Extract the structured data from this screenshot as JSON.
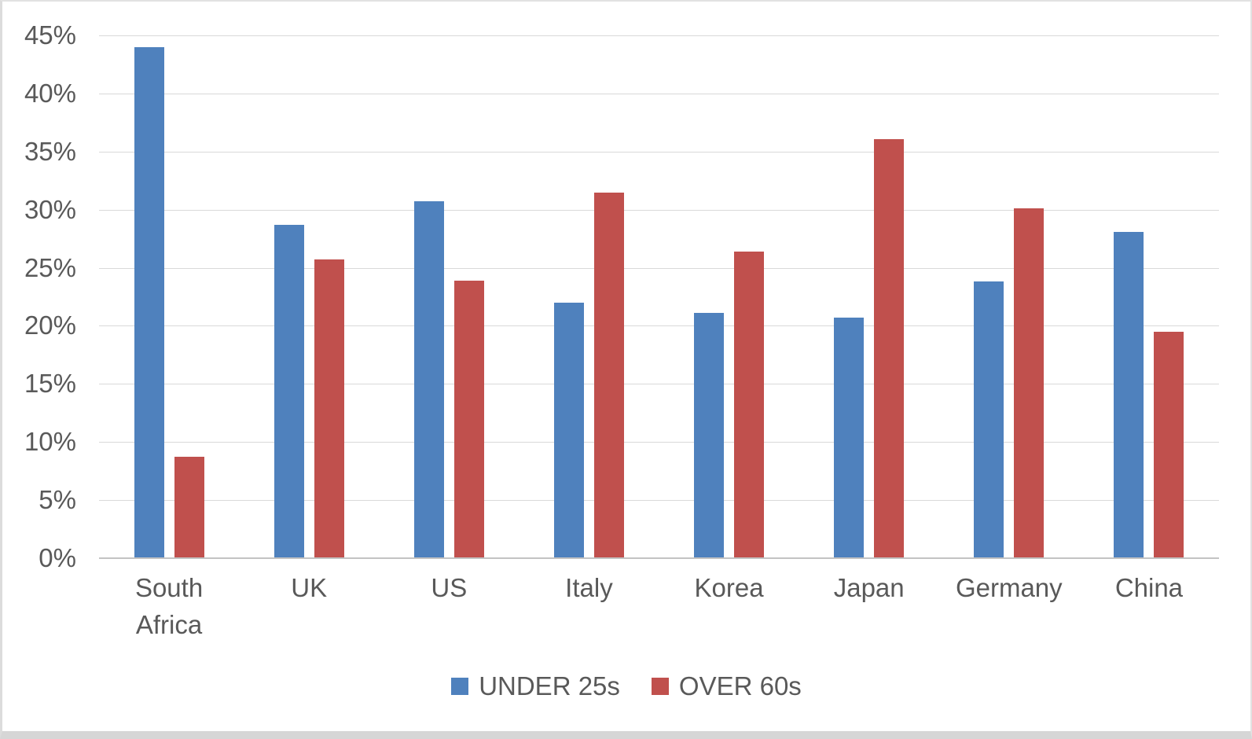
{
  "chart_data": {
    "type": "bar",
    "title": "",
    "xlabel": "",
    "ylabel": "",
    "categories": [
      "South Africa",
      "UK",
      "US",
      "Italy",
      "Korea",
      "Japan",
      "Germany",
      "China"
    ],
    "series": [
      {
        "name": "UNDER 25s",
        "color": "#4F81BD",
        "values": [
          44.0,
          28.7,
          30.7,
          22.0,
          21.1,
          20.7,
          23.8,
          28.1
        ]
      },
      {
        "name": "OVER 60s",
        "color": "#C0504D",
        "values": [
          8.7,
          25.7,
          23.9,
          31.5,
          26.4,
          36.1,
          30.1,
          19.5
        ]
      }
    ],
    "ylim": [
      0,
      45
    ],
    "ytick_step": 5,
    "ytick_labels": [
      "0%",
      "5%",
      "10%",
      "15%",
      "20%",
      "25%",
      "30%",
      "35%",
      "40%",
      "45%"
    ],
    "grid": true,
    "legend_position": "bottom"
  },
  "colors": {
    "series_blue": "#4F81BD",
    "series_red": "#C0504D",
    "axis_text": "#595959",
    "gridline": "#D9D9D9",
    "axis_line": "#C3C3C3",
    "frame_border": "#D9D9D9"
  }
}
